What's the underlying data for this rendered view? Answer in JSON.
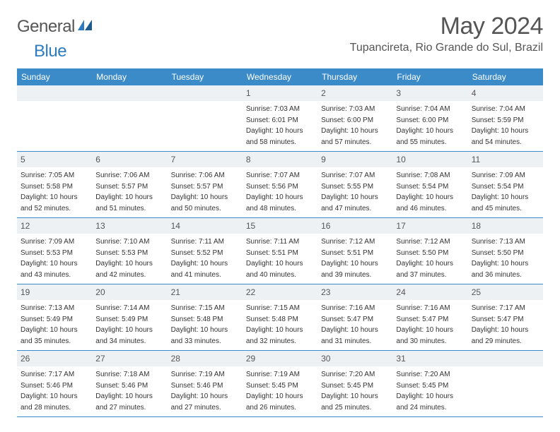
{
  "logo": {
    "general": "General",
    "blue": "Blue"
  },
  "title": "May 2024",
  "location": "Tupancireta, Rio Grande do Sul, Brazil",
  "colors": {
    "header_bg": "#3b8bc8",
    "daynum_bg": "#eef1f4",
    "border": "#3b8bc8",
    "text": "#333333",
    "title_text": "#555555"
  },
  "dayNames": [
    "Sunday",
    "Monday",
    "Tuesday",
    "Wednesday",
    "Thursday",
    "Friday",
    "Saturday"
  ],
  "weeks": [
    [
      null,
      null,
      null,
      {
        "n": "1",
        "sr": "Sunrise: 7:03 AM",
        "ss": "Sunset: 6:01 PM",
        "dl1": "Daylight: 10 hours",
        "dl2": "and 58 minutes."
      },
      {
        "n": "2",
        "sr": "Sunrise: 7:03 AM",
        "ss": "Sunset: 6:00 PM",
        "dl1": "Daylight: 10 hours",
        "dl2": "and 57 minutes."
      },
      {
        "n": "3",
        "sr": "Sunrise: 7:04 AM",
        "ss": "Sunset: 6:00 PM",
        "dl1": "Daylight: 10 hours",
        "dl2": "and 55 minutes."
      },
      {
        "n": "4",
        "sr": "Sunrise: 7:04 AM",
        "ss": "Sunset: 5:59 PM",
        "dl1": "Daylight: 10 hours",
        "dl2": "and 54 minutes."
      }
    ],
    [
      {
        "n": "5",
        "sr": "Sunrise: 7:05 AM",
        "ss": "Sunset: 5:58 PM",
        "dl1": "Daylight: 10 hours",
        "dl2": "and 52 minutes."
      },
      {
        "n": "6",
        "sr": "Sunrise: 7:06 AM",
        "ss": "Sunset: 5:57 PM",
        "dl1": "Daylight: 10 hours",
        "dl2": "and 51 minutes."
      },
      {
        "n": "7",
        "sr": "Sunrise: 7:06 AM",
        "ss": "Sunset: 5:57 PM",
        "dl1": "Daylight: 10 hours",
        "dl2": "and 50 minutes."
      },
      {
        "n": "8",
        "sr": "Sunrise: 7:07 AM",
        "ss": "Sunset: 5:56 PM",
        "dl1": "Daylight: 10 hours",
        "dl2": "and 48 minutes."
      },
      {
        "n": "9",
        "sr": "Sunrise: 7:07 AM",
        "ss": "Sunset: 5:55 PM",
        "dl1": "Daylight: 10 hours",
        "dl2": "and 47 minutes."
      },
      {
        "n": "10",
        "sr": "Sunrise: 7:08 AM",
        "ss": "Sunset: 5:54 PM",
        "dl1": "Daylight: 10 hours",
        "dl2": "and 46 minutes."
      },
      {
        "n": "11",
        "sr": "Sunrise: 7:09 AM",
        "ss": "Sunset: 5:54 PM",
        "dl1": "Daylight: 10 hours",
        "dl2": "and 45 minutes."
      }
    ],
    [
      {
        "n": "12",
        "sr": "Sunrise: 7:09 AM",
        "ss": "Sunset: 5:53 PM",
        "dl1": "Daylight: 10 hours",
        "dl2": "and 43 minutes."
      },
      {
        "n": "13",
        "sr": "Sunrise: 7:10 AM",
        "ss": "Sunset: 5:53 PM",
        "dl1": "Daylight: 10 hours",
        "dl2": "and 42 minutes."
      },
      {
        "n": "14",
        "sr": "Sunrise: 7:11 AM",
        "ss": "Sunset: 5:52 PM",
        "dl1": "Daylight: 10 hours",
        "dl2": "and 41 minutes."
      },
      {
        "n": "15",
        "sr": "Sunrise: 7:11 AM",
        "ss": "Sunset: 5:51 PM",
        "dl1": "Daylight: 10 hours",
        "dl2": "and 40 minutes."
      },
      {
        "n": "16",
        "sr": "Sunrise: 7:12 AM",
        "ss": "Sunset: 5:51 PM",
        "dl1": "Daylight: 10 hours",
        "dl2": "and 39 minutes."
      },
      {
        "n": "17",
        "sr": "Sunrise: 7:12 AM",
        "ss": "Sunset: 5:50 PM",
        "dl1": "Daylight: 10 hours",
        "dl2": "and 37 minutes."
      },
      {
        "n": "18",
        "sr": "Sunrise: 7:13 AM",
        "ss": "Sunset: 5:50 PM",
        "dl1": "Daylight: 10 hours",
        "dl2": "and 36 minutes."
      }
    ],
    [
      {
        "n": "19",
        "sr": "Sunrise: 7:13 AM",
        "ss": "Sunset: 5:49 PM",
        "dl1": "Daylight: 10 hours",
        "dl2": "and 35 minutes."
      },
      {
        "n": "20",
        "sr": "Sunrise: 7:14 AM",
        "ss": "Sunset: 5:49 PM",
        "dl1": "Daylight: 10 hours",
        "dl2": "and 34 minutes."
      },
      {
        "n": "21",
        "sr": "Sunrise: 7:15 AM",
        "ss": "Sunset: 5:48 PM",
        "dl1": "Daylight: 10 hours",
        "dl2": "and 33 minutes."
      },
      {
        "n": "22",
        "sr": "Sunrise: 7:15 AM",
        "ss": "Sunset: 5:48 PM",
        "dl1": "Daylight: 10 hours",
        "dl2": "and 32 minutes."
      },
      {
        "n": "23",
        "sr": "Sunrise: 7:16 AM",
        "ss": "Sunset: 5:47 PM",
        "dl1": "Daylight: 10 hours",
        "dl2": "and 31 minutes."
      },
      {
        "n": "24",
        "sr": "Sunrise: 7:16 AM",
        "ss": "Sunset: 5:47 PM",
        "dl1": "Daylight: 10 hours",
        "dl2": "and 30 minutes."
      },
      {
        "n": "25",
        "sr": "Sunrise: 7:17 AM",
        "ss": "Sunset: 5:47 PM",
        "dl1": "Daylight: 10 hours",
        "dl2": "and 29 minutes."
      }
    ],
    [
      {
        "n": "26",
        "sr": "Sunrise: 7:17 AM",
        "ss": "Sunset: 5:46 PM",
        "dl1": "Daylight: 10 hours",
        "dl2": "and 28 minutes."
      },
      {
        "n": "27",
        "sr": "Sunrise: 7:18 AM",
        "ss": "Sunset: 5:46 PM",
        "dl1": "Daylight: 10 hours",
        "dl2": "and 27 minutes."
      },
      {
        "n": "28",
        "sr": "Sunrise: 7:19 AM",
        "ss": "Sunset: 5:46 PM",
        "dl1": "Daylight: 10 hours",
        "dl2": "and 27 minutes."
      },
      {
        "n": "29",
        "sr": "Sunrise: 7:19 AM",
        "ss": "Sunset: 5:45 PM",
        "dl1": "Daylight: 10 hours",
        "dl2": "and 26 minutes."
      },
      {
        "n": "30",
        "sr": "Sunrise: 7:20 AM",
        "ss": "Sunset: 5:45 PM",
        "dl1": "Daylight: 10 hours",
        "dl2": "and 25 minutes."
      },
      {
        "n": "31",
        "sr": "Sunrise: 7:20 AM",
        "ss": "Sunset: 5:45 PM",
        "dl1": "Daylight: 10 hours",
        "dl2": "and 24 minutes."
      },
      null
    ]
  ]
}
